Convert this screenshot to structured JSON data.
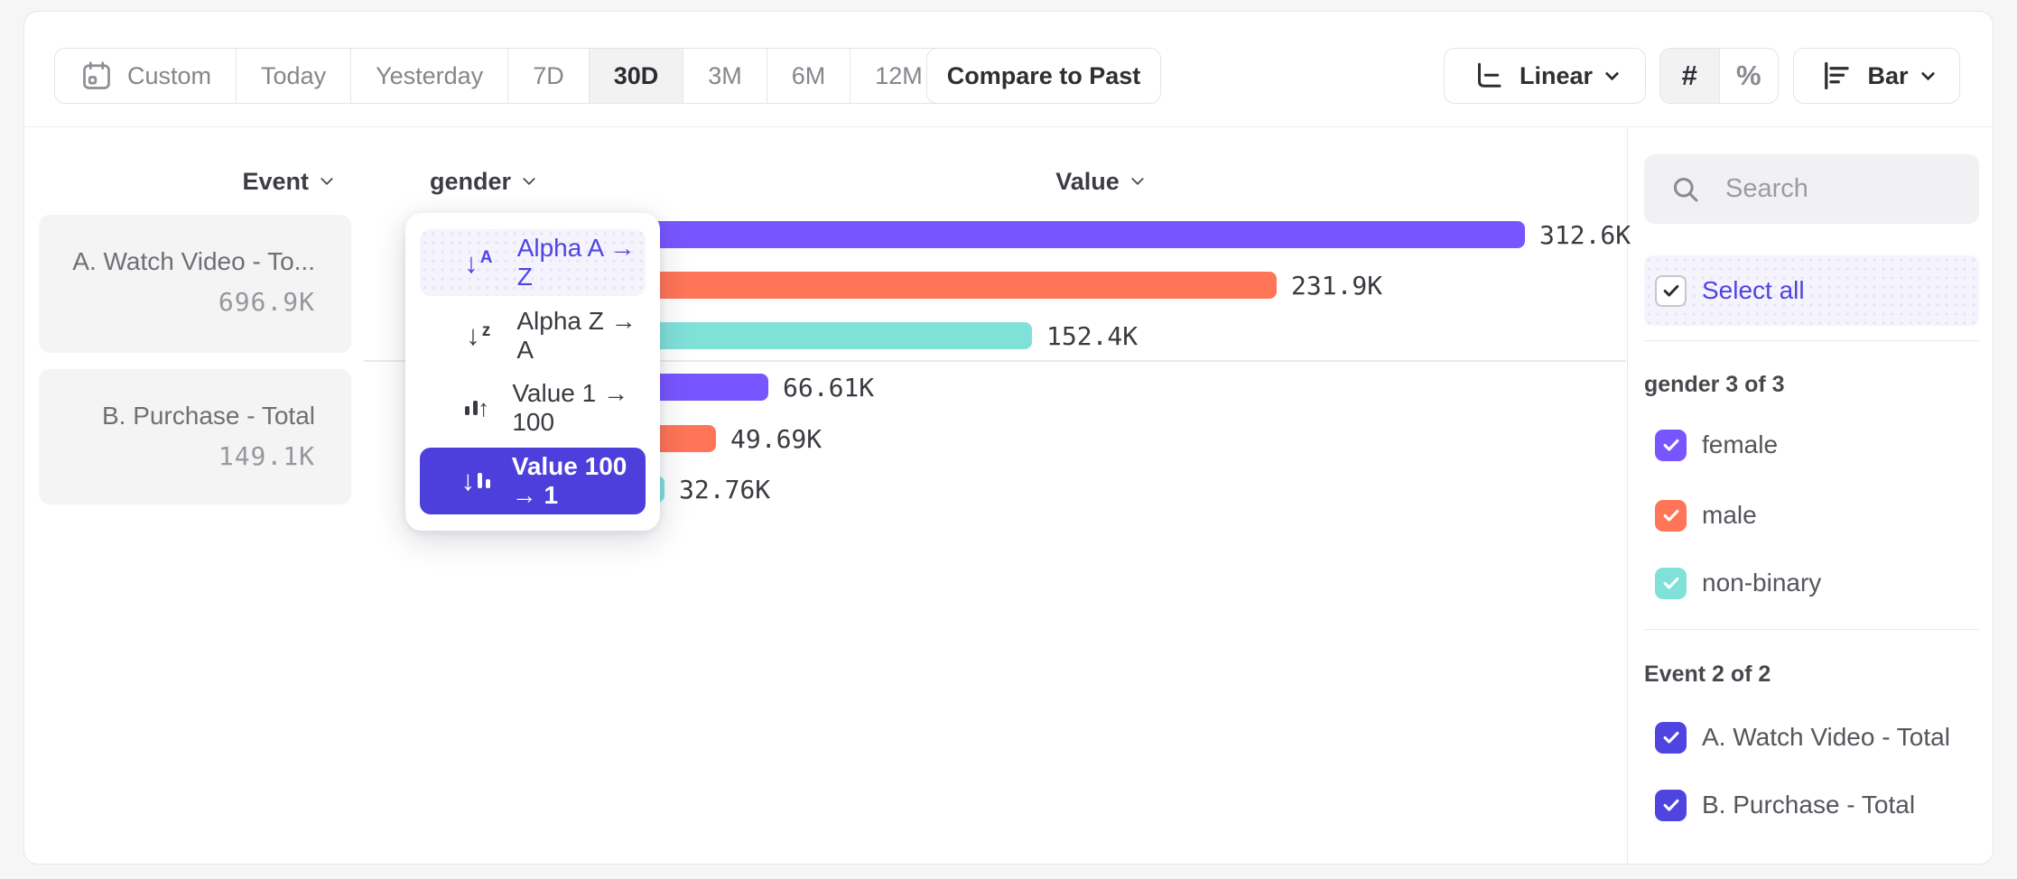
{
  "colors": {
    "purple": "#7856FF",
    "coral": "#FF7557",
    "teal": "#80E1D9",
    "accent": "#4F44E0"
  },
  "toolbar": {
    "date_ranges": [
      {
        "label": "Custom",
        "icon": "calendar",
        "selected": false
      },
      {
        "label": "Today",
        "selected": false
      },
      {
        "label": "Yesterday",
        "selected": false
      },
      {
        "label": "7D",
        "selected": false
      },
      {
        "label": "30D",
        "selected": true
      },
      {
        "label": "3M",
        "selected": false
      },
      {
        "label": "6M",
        "selected": false
      },
      {
        "label": "12M",
        "selected": false
      }
    ],
    "compare_label": "Compare to Past",
    "scale_label": "Linear",
    "format_options": [
      {
        "label": "#",
        "selected": true
      },
      {
        "label": "%",
        "selected": false
      }
    ],
    "chart_type_label": "Bar"
  },
  "table": {
    "event_header": "Event",
    "group_header": "gender",
    "value_header": "Value",
    "event_cards": [
      {
        "title": "A. Watch Video - To...",
        "total": "696.9K"
      },
      {
        "title": "B. Purchase - Total",
        "total": "149.1K"
      }
    ]
  },
  "chart_data": {
    "type": "bar",
    "orientation": "horizontal",
    "value_format": "absolute",
    "groups": [
      {
        "event": "A. Watch Video - Total",
        "total_label": "696.9K",
        "rows": [
          {
            "label": "female",
            "value": 312600,
            "value_label": "312.6K",
            "color": "#7856FF"
          },
          {
            "label": "male",
            "value": 231900,
            "value_label": "231.9K",
            "color": "#FF7557"
          },
          {
            "label": "non-binary",
            "value": 152400,
            "value_label": "152.4K",
            "color": "#80E1D9"
          }
        ]
      },
      {
        "event": "B. Purchase - Total",
        "total_label": "149.1K",
        "rows": [
          {
            "label": "female",
            "value": 66610,
            "value_label": "66.61K",
            "color": "#7856FF"
          },
          {
            "label": "male",
            "value": 49690,
            "value_label": "49.69K",
            "color": "#FF7557"
          },
          {
            "label": "non-binary",
            "value": 32760,
            "value_label": "32.76K",
            "color": "#80E1D9"
          }
        ]
      }
    ]
  },
  "sort_menu": {
    "items": [
      {
        "label": "Alpha A → Z",
        "icon": "sort-alpha-asc",
        "state": "highlighted"
      },
      {
        "label": "Alpha Z → A",
        "icon": "sort-alpha-desc",
        "state": "default"
      },
      {
        "label": "Value 1 → 100",
        "icon": "sort-value-asc",
        "state": "default"
      },
      {
        "label": "Value 100 → 1",
        "icon": "sort-value-desc",
        "state": "selected"
      }
    ]
  },
  "sidebar": {
    "search_placeholder": "Search",
    "select_all_label": "Select all",
    "sections": [
      {
        "title": "gender 3 of 3",
        "items": [
          {
            "label": "female",
            "checked": true,
            "color": "#7856FF"
          },
          {
            "label": "male",
            "checked": true,
            "color": "#FF7557"
          },
          {
            "label": "non-binary",
            "checked": true,
            "color": "#80E1D9"
          }
        ]
      },
      {
        "title": "Event 2 of 2",
        "items": [
          {
            "label": "A. Watch Video - Total",
            "checked": true,
            "color": "#4F44E0"
          },
          {
            "label": "B. Purchase - Total",
            "checked": true,
            "color": "#4F44E0"
          }
        ]
      }
    ]
  }
}
